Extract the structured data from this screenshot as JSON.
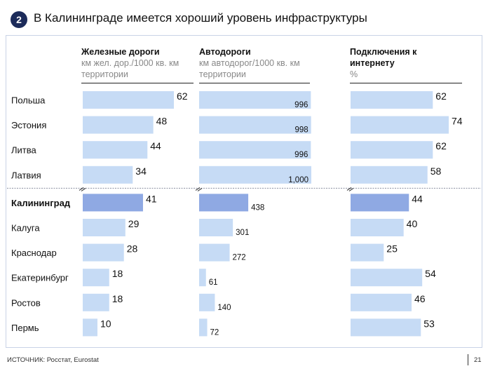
{
  "slide": {
    "badge": "2",
    "title": "В Калининграде имеется хороший уровень инфраструктуры",
    "source": "ИСТОЧНИК: Росстат, Eurostat",
    "page": "21"
  },
  "chart_data": {
    "type": "bar",
    "orientation": "horizontal",
    "categories": [
      "Польша",
      "Эстония",
      "Литва",
      "Латвия",
      "Калининград",
      "Калуга",
      "Краснодар",
      "Екатеринбург",
      "Ростов",
      "Пермь"
    ],
    "highlight": "Калининград",
    "series": [
      {
        "name": "Железные дороги",
        "unit_text": "км жел. дор./1000 кв. км территории",
        "values": [
          62,
          48,
          44,
          34,
          41,
          29,
          28,
          18,
          18,
          10
        ],
        "labels": [
          "62",
          "48",
          "44",
          "34",
          "41",
          "29",
          "28",
          "18",
          "18",
          "10"
        ]
      },
      {
        "name": "Автодороги",
        "unit_text": "км автодорог/1000 кв. км территории",
        "values": [
          996,
          998,
          996,
          1000,
          438,
          301,
          272,
          61,
          140,
          72
        ],
        "labels": [
          "996",
          "998",
          "996",
          "1,000",
          "438",
          "301",
          "272",
          "61",
          "140",
          "72"
        ]
      },
      {
        "name": "Подключения к интернету",
        "unit_text": "%",
        "values": [
          62,
          74,
          62,
          58,
          44,
          40,
          25,
          54,
          46,
          53
        ],
        "labels": [
          "62",
          "74",
          "62",
          "58",
          "44",
          "40",
          "25",
          "54",
          "46",
          "53"
        ]
      }
    ],
    "colors": {
      "bar": "#c6dbf5",
      "bar_highlight": "#8fa9e3",
      "divider": "#8a8fa0"
    }
  }
}
